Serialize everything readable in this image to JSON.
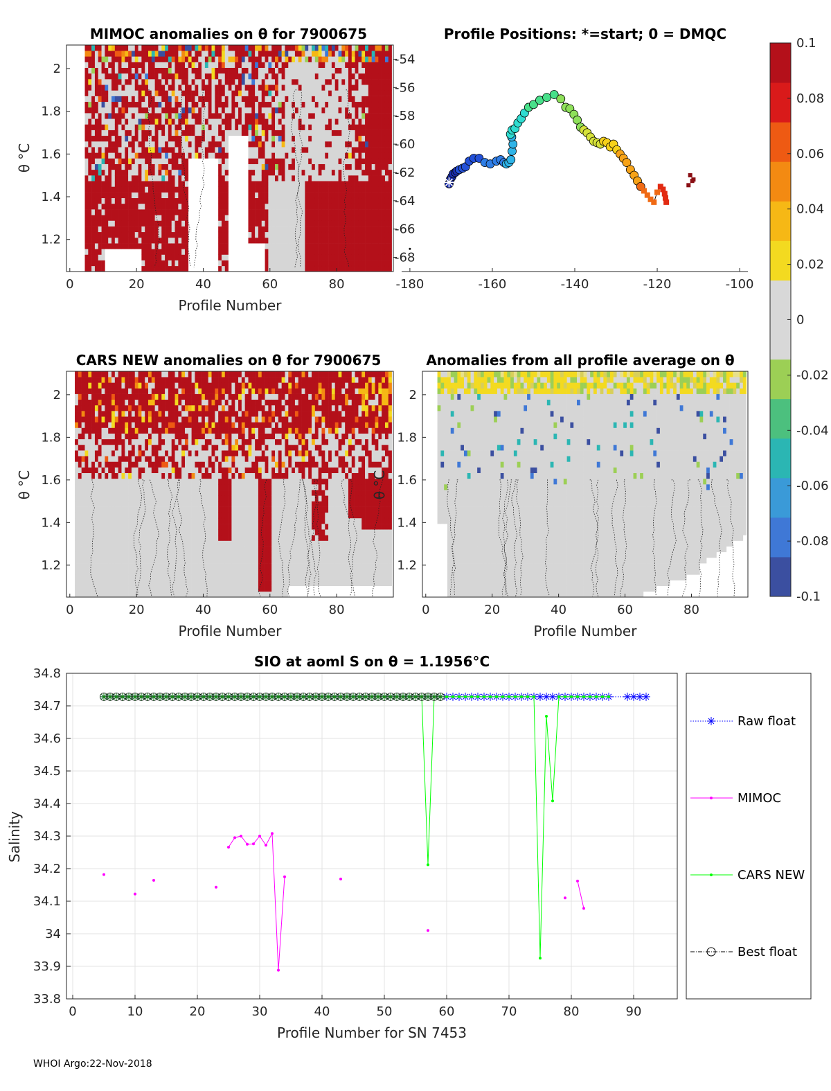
{
  "footer": "WHOI Argo:22-Nov-2018",
  "colorbar": {
    "ticks": [
      "0.1",
      "0.08",
      "0.06",
      "0.04",
      "0.02",
      "0",
      "-0.02",
      "-0.04",
      "-0.06",
      "-0.08",
      "-0.1"
    ],
    "colors": [
      "#3b4fa0",
      "#3f78d6",
      "#3a9ad8",
      "#2bb6b3",
      "#4cc07e",
      "#9ccf55",
      "#d8d8d8",
      "#d8d8d8",
      "#f3da20",
      "#f6b815",
      "#f38a12",
      "#ee5a13",
      "#d91a1a",
      "#b4101a"
    ]
  },
  "chart_data": [
    {
      "id": "mimoc_anom",
      "type": "heatmap",
      "title": "MIMOC anomalies on θ  for 7900675",
      "xlabel": "Profile Number",
      "ylabel": "θ °C",
      "xlim": [
        -1,
        97
      ],
      "ylim": [
        1.05,
        2.11
      ],
      "xticks": [
        "0",
        "20",
        "40",
        "60",
        "80"
      ],
      "yticks": [
        "1.2",
        "1.4",
        "1.6",
        "1.8",
        "2"
      ]
    },
    {
      "id": "positions",
      "type": "scatter",
      "title": "Profile Positions: *=start; 0 = DMQC",
      "xlim": [
        -182,
        -98
      ],
      "ylim": [
        -69,
        -53
      ],
      "xticks": [
        "-180",
        "-160",
        "-140",
        "-120",
        "-100"
      ],
      "yticks": [
        "-54",
        "-56",
        "-58",
        "-60",
        "-62",
        "-64",
        "-66",
        "-68"
      ],
      "track_lon": [
        -170.5,
        -170.2,
        -169.8,
        -169.5,
        -169.0,
        -168.6,
        -168.0,
        -167.2,
        -166.5,
        -165.6,
        -164.5,
        -163.2,
        -161.8,
        -160.5,
        -159.0,
        -158.0,
        -157.2,
        -156.6,
        -156.0,
        -155.5,
        -155.2,
        -155.0,
        -155.3,
        -155.6,
        -155.2,
        -154.5,
        -153.8,
        -153.0,
        -152.2,
        -151.2,
        -150.0,
        -148.5,
        -146.8,
        -145.0,
        -143.4,
        -142.2,
        -141.2,
        -140.2,
        -139.4,
        -138.6,
        -137.8,
        -137.0,
        -136.2,
        -135.4,
        -134.6,
        -133.8,
        -133.0,
        -132.2,
        -131.4,
        -130.6,
        -129.8,
        -129.0,
        -128.2,
        -127.4,
        -126.5,
        -125.6,
        -124.8,
        -124.0,
        -123.2,
        -122.4,
        -121.6,
        -120.8,
        -120.0,
        -119.2,
        -118.6,
        -118.2,
        -118.0,
        -117.8
      ],
      "track_lat": [
        -62.8,
        -62.5,
        -62.3,
        -62.1,
        -62.0,
        -61.9,
        -61.8,
        -61.7,
        -61.6,
        -61.2,
        -61.0,
        -61.0,
        -61.3,
        -61.4,
        -61.2,
        -61.1,
        -61.3,
        -61.4,
        -61.3,
        -61.1,
        -60.5,
        -60.0,
        -59.5,
        -59.3,
        -59.0,
        -58.9,
        -58.5,
        -58.2,
        -57.8,
        -57.4,
        -57.2,
        -56.9,
        -56.7,
        -56.5,
        -56.8,
        -57.4,
        -57.5,
        -57.9,
        -58.3,
        -58.8,
        -59.0,
        -59.2,
        -59.5,
        -59.8,
        -59.9,
        -60.0,
        -59.8,
        -59.9,
        -60.2,
        -60.0,
        -60.4,
        -60.7,
        -61.0,
        -61.3,
        -61.8,
        -62.2,
        -62.6,
        -63.0,
        -63.3,
        -63.6,
        -63.9,
        -64.1,
        -63.4,
        -63.0,
        -63.2,
        -63.5,
        -63.8,
        -64.1
      ],
      "dmqc_lon": [
        -112.0,
        -111.5,
        -112.4,
        -111.2
      ],
      "dmqc_lat": [
        -62.2,
        -62.6,
        -62.9,
        -62.5
      ],
      "start_lon": -170.5,
      "start_lat": -62.7
    },
    {
      "id": "cars_anom",
      "type": "heatmap",
      "title": "CARS NEW anomalies on θ for 7900675",
      "xlabel": "Profile Number",
      "ylabel": "θ °C",
      "xlim": [
        -1,
        97
      ],
      "ylim": [
        1.05,
        2.11
      ],
      "xticks": [
        "0",
        "20",
        "40",
        "60",
        "80"
      ],
      "yticks": [
        "1.2",
        "1.4",
        "1.6",
        "1.8",
        "2"
      ]
    },
    {
      "id": "avg_anom",
      "type": "heatmap",
      "title": "Anomalies from all profile average on θ",
      "xlabel": "Profile Number",
      "ylabel": "θ °C",
      "xlim": [
        -1,
        97
      ],
      "ylim": [
        1.05,
        2.11
      ],
      "xticks": [
        "0",
        "20",
        "40",
        "60",
        "80"
      ],
      "yticks": [
        "1.2",
        "1.4",
        "1.6",
        "1.8",
        "2"
      ]
    },
    {
      "id": "salinity",
      "type": "line",
      "title": "SIO at aoml S on θ = 1.1956°C",
      "xlabel": "Profile Number for SN 7453",
      "ylabel": "Salinity",
      "xlim": [
        -1,
        97
      ],
      "ylim": [
        33.8,
        34.8
      ],
      "xticks": [
        "0",
        "10",
        "20",
        "30",
        "40",
        "50",
        "60",
        "70",
        "80",
        "90"
      ],
      "yticks": [
        "33.8",
        "33.9",
        "34",
        "34.1",
        "34.2",
        "34.3",
        "34.4",
        "34.5",
        "34.6",
        "34.7",
        "34.8"
      ],
      "series": [
        {
          "name": "Raw float",
          "color": "#0000ff",
          "style": "dotted-star",
          "x": [
            5,
            6,
            7,
            8,
            9,
            10,
            11,
            12,
            13,
            14,
            15,
            16,
            17,
            18,
            19,
            20,
            21,
            22,
            23,
            24,
            25,
            26,
            27,
            28,
            29,
            30,
            31,
            32,
            33,
            34,
            35,
            36,
            37,
            38,
            39,
            40,
            41,
            42,
            43,
            44,
            45,
            46,
            47,
            48,
            49,
            50,
            51,
            52,
            53,
            54,
            55,
            56,
            57,
            58,
            59,
            60,
            61,
            62,
            63,
            64,
            65,
            66,
            67,
            68,
            69,
            70,
            71,
            72,
            73,
            74,
            75,
            76,
            77,
            78,
            79,
            80,
            81,
            82,
            83,
            84,
            85,
            86,
            89,
            90,
            91,
            92
          ],
          "y": 34.728
        },
        {
          "name": "MIMOC",
          "color": "#ff00ff",
          "segments": [
            [
              [
                5,
                34.182
              ]
            ],
            [
              [
                10,
                34.122
              ]
            ],
            [
              [
                13,
                34.164
              ]
            ],
            [
              [
                23,
                34.143
              ]
            ],
            [
              [
                25,
                34.266
              ],
              [
                26,
                34.295
              ],
              [
                27,
                34.3
              ],
              [
                28,
                34.275
              ],
              [
                29,
                34.276
              ],
              [
                30,
                34.3
              ],
              [
                31,
                34.272
              ],
              [
                32,
                34.308
              ],
              [
                33,
                33.888
              ],
              [
                34,
                34.175
              ]
            ],
            [
              [
                43,
                34.168
              ]
            ],
            [
              [
                57,
                34.01
              ]
            ],
            [
              [
                79,
                34.11
              ]
            ],
            [
              [
                81,
                34.162
              ],
              [
                82,
                34.078
              ]
            ]
          ]
        },
        {
          "name": "CARS NEW",
          "color": "#00ff00",
          "x": [
            5,
            6,
            7,
            8,
            9,
            10,
            11,
            12,
            13,
            14,
            15,
            16,
            17,
            18,
            19,
            20,
            21,
            22,
            23,
            24,
            25,
            26,
            27,
            28,
            29,
            30,
            31,
            32,
            33,
            34,
            35,
            36,
            37,
            38,
            39,
            40,
            41,
            42,
            43,
            44,
            45,
            46,
            47,
            48,
            49,
            50,
            51,
            52,
            53,
            54,
            55,
            56,
            57,
            58,
            59,
            60,
            61,
            62,
            63,
            64,
            65,
            66,
            67,
            68,
            69,
            70,
            71,
            72,
            73,
            74,
            75,
            76,
            77,
            78,
            79,
            80,
            81,
            82,
            83,
            84,
            85,
            86
          ],
          "y": [
            34.728,
            34.728,
            34.728,
            34.728,
            34.728,
            34.728,
            34.728,
            34.728,
            34.728,
            34.728,
            34.728,
            34.728,
            34.728,
            34.728,
            34.728,
            34.728,
            34.728,
            34.728,
            34.728,
            34.728,
            34.728,
            34.728,
            34.728,
            34.728,
            34.728,
            34.728,
            34.728,
            34.728,
            34.728,
            34.728,
            34.728,
            34.728,
            34.728,
            34.728,
            34.728,
            34.728,
            34.728,
            34.728,
            34.728,
            34.728,
            34.728,
            34.728,
            34.728,
            34.728,
            34.728,
            34.728,
            34.728,
            34.728,
            34.728,
            34.728,
            34.728,
            34.728,
            34.212,
            34.728,
            34.728,
            34.728,
            34.728,
            34.728,
            34.728,
            34.728,
            34.728,
            34.728,
            34.728,
            34.728,
            34.728,
            34.728,
            34.728,
            34.728,
            34.728,
            34.728,
            33.925,
            34.668,
            34.408,
            34.728,
            34.728,
            34.728,
            34.728,
            34.728,
            34.728,
            34.728,
            34.728,
            34.728
          ]
        },
        {
          "name": "Best float",
          "color": "#000000",
          "style": "dashdot-circle",
          "x": [
            5,
            6,
            7,
            8,
            9,
            10,
            11,
            12,
            13,
            14,
            15,
            16,
            17,
            18,
            19,
            20,
            21,
            22,
            23,
            24,
            25,
            26,
            27,
            28,
            29,
            30,
            31,
            32,
            33,
            34,
            35,
            36,
            37,
            38,
            39,
            40,
            41,
            42,
            43,
            44,
            45,
            46,
            47,
            48,
            49,
            50,
            51,
            52,
            53,
            54,
            55,
            56,
            57,
            58,
            59
          ],
          "y": 34.728
        }
      ],
      "legend": [
        "Raw float",
        "MIMOC",
        "CARS NEW",
        "Best float"
      ]
    }
  ]
}
